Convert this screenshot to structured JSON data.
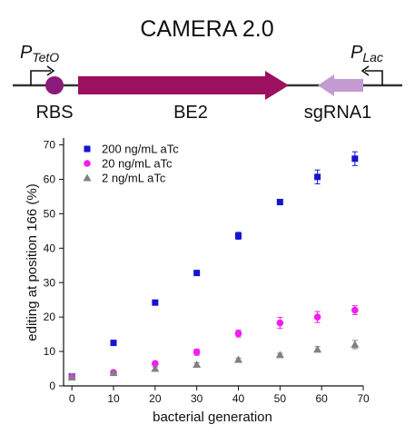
{
  "title": "CAMERA 2.0",
  "construct": {
    "promoter_left": {
      "main": "P",
      "sub": "TetO"
    },
    "promoter_right": {
      "main": "P",
      "sub": "Lac"
    },
    "rbs_label": "RBS",
    "gene_label": "BE2",
    "guide_label": "sgRNA1",
    "colors": {
      "backbone": "#333333",
      "rbs": "#8b1a7a",
      "gene": "#9c1060",
      "guide": "#c49ad2"
    }
  },
  "chart_data": {
    "type": "scatter",
    "xlabel": "bacterial generation",
    "ylabel": "editing at position 166 (%)",
    "xlim": [
      -2,
      70
    ],
    "ylim": [
      0,
      72
    ],
    "xticks": [
      0,
      10,
      20,
      30,
      40,
      50,
      60,
      70
    ],
    "yticks": [
      0,
      10,
      20,
      30,
      40,
      50,
      60,
      70
    ],
    "legend_position": "top-left",
    "grid": false,
    "series": [
      {
        "name": "200 ng/mL aTc",
        "marker": "square",
        "color": "#1414d4",
        "x": [
          0,
          10,
          20,
          30,
          40,
          50,
          59,
          68
        ],
        "y": [
          2.7,
          12.5,
          24.2,
          32.8,
          43.6,
          53.4,
          60.7,
          66.0
        ],
        "err": [
          0.5,
          0.5,
          0.5,
          0.5,
          1.0,
          0.8,
          2.0,
          2.0
        ]
      },
      {
        "name": "20 ng/mL aTc",
        "marker": "circle",
        "color": "#f01ef0",
        "x": [
          0,
          10,
          20,
          30,
          40,
          50,
          59,
          68
        ],
        "y": [
          2.6,
          3.9,
          6.5,
          9.8,
          15.2,
          18.3,
          20.0,
          22.0
        ],
        "err": [
          0.5,
          0.5,
          0.6,
          0.9,
          1.0,
          1.6,
          1.6,
          1.3
        ]
      },
      {
        "name": "2 ng/mL aTc",
        "marker": "triangle",
        "color": "#808080",
        "x": [
          0,
          10,
          20,
          30,
          40,
          50,
          59,
          68
        ],
        "y": [
          2.5,
          3.8,
          5.0,
          6.2,
          7.6,
          9.0,
          10.6,
          12.0
        ],
        "err": [
          0.4,
          0.5,
          0.5,
          0.5,
          0.5,
          0.5,
          0.8,
          1.2
        ]
      }
    ]
  }
}
